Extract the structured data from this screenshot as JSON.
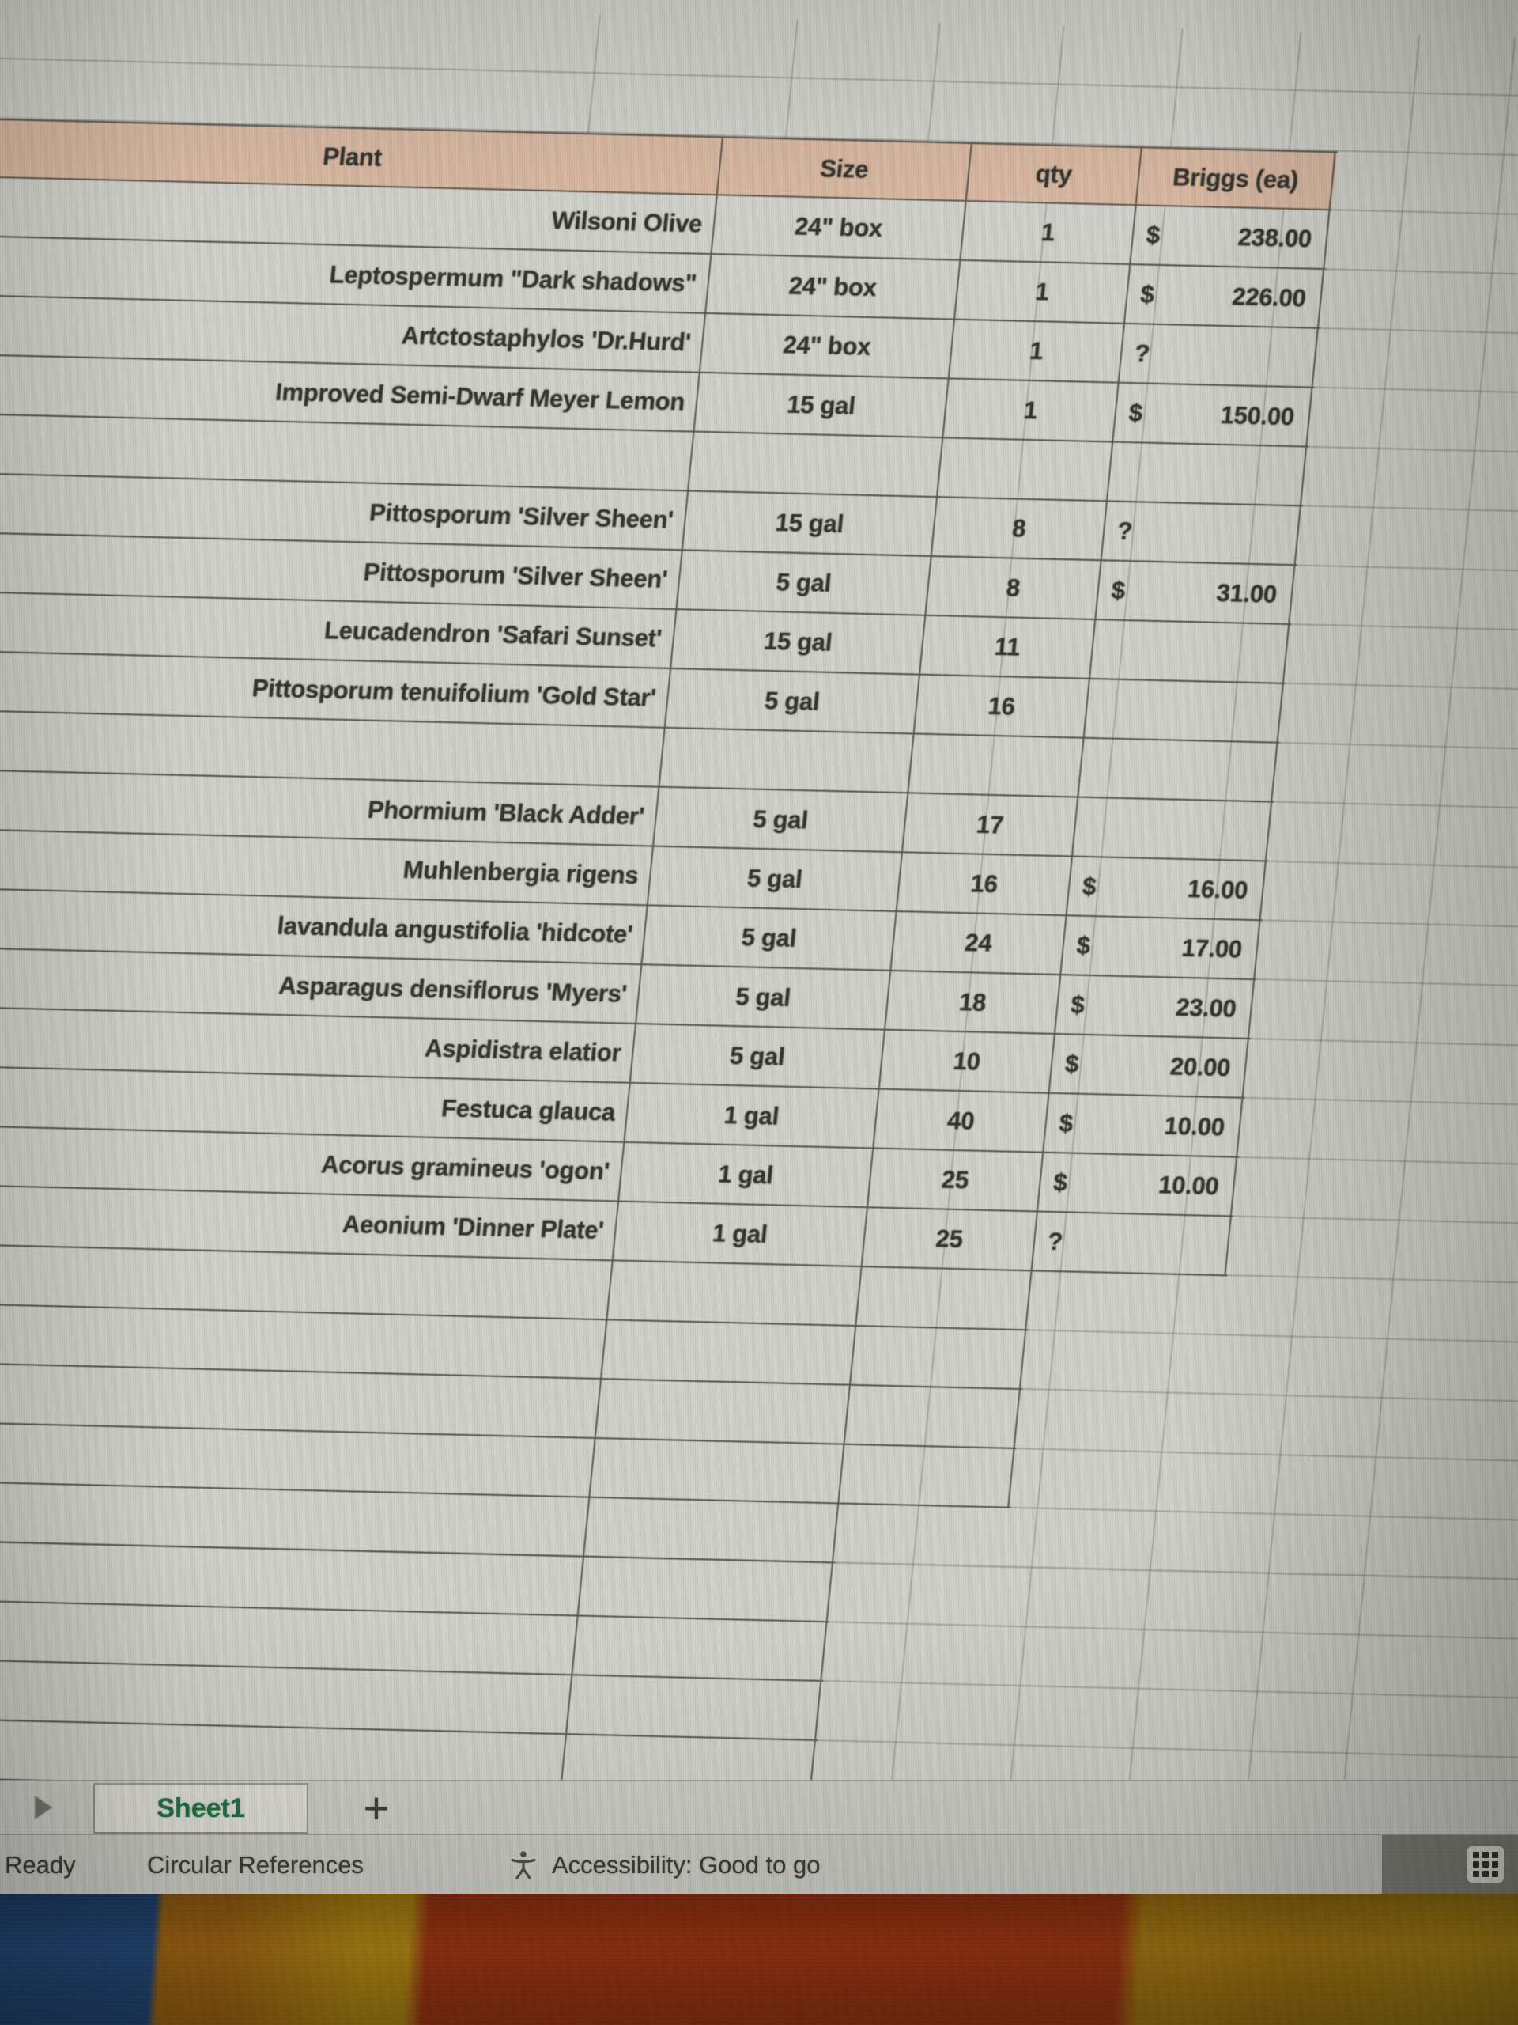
{
  "table": {
    "columns": [
      {
        "key": "plant",
        "label": "Plant"
      },
      {
        "key": "size",
        "label": "Size"
      },
      {
        "key": "qty",
        "label": "qty"
      },
      {
        "key": "price",
        "label": "Briggs (ea)"
      }
    ],
    "rows": [
      {
        "plant": "Wilsoni Olive",
        "size": "24\" box",
        "qty": "1",
        "currency": "$",
        "price": "238.00"
      },
      {
        "plant": "Leptospermum \"Dark shadows\"",
        "size": "24\" box",
        "qty": "1",
        "currency": "$",
        "price": "226.00"
      },
      {
        "plant": "Artctostaphylos 'Dr.Hurd'",
        "size": "24\" box",
        "qty": "1",
        "currency": "?",
        "price": ""
      },
      {
        "plant": "Improved Semi-Dwarf Meyer Lemon",
        "size": "15 gal",
        "qty": "1",
        "currency": "$",
        "price": "150.00"
      },
      {
        "plant": "",
        "size": "",
        "qty": "",
        "currency": "",
        "price": ""
      },
      {
        "plant": "Pittosporum 'Silver Sheen'",
        "size": "15 gal",
        "qty": "8",
        "currency": "?",
        "price": ""
      },
      {
        "plant": "Pittosporum 'Silver Sheen'",
        "size": "5 gal",
        "qty": "8",
        "currency": "$",
        "price": "31.00"
      },
      {
        "plant": "Leucadendron 'Safari Sunset'",
        "size": "15 gal",
        "qty": "11",
        "currency": "",
        "price": ""
      },
      {
        "plant": "Pittosporum tenuifolium 'Gold Star'",
        "size": "5 gal",
        "qty": "16",
        "currency": "",
        "price": ""
      },
      {
        "plant": "",
        "size": "",
        "qty": "",
        "currency": "",
        "price": ""
      },
      {
        "plant": "Phormium 'Black Adder'",
        "size": "5 gal",
        "qty": "17",
        "currency": "",
        "price": ""
      },
      {
        "plant": "Muhlenbergia rigens",
        "size": "5 gal",
        "qty": "16",
        "currency": "$",
        "price": "16.00"
      },
      {
        "plant": "lavandula angustifolia 'hidcote'",
        "size": "5 gal",
        "qty": "24",
        "currency": "$",
        "price": "17.00"
      },
      {
        "plant": "Asparagus densiflorus 'Myers'",
        "size": "5 gal",
        "qty": "18",
        "currency": "$",
        "price": "23.00"
      },
      {
        "plant": "Aspidistra elatior",
        "size": "5 gal",
        "qty": "10",
        "currency": "$",
        "price": "20.00"
      },
      {
        "plant": "Festuca glauca",
        "size": "1 gal",
        "qty": "40",
        "currency": "$",
        "price": "10.00"
      },
      {
        "plant": "Acorus gramineus 'ogon'",
        "size": "1 gal",
        "qty": "25",
        "currency": "$",
        "price": "10.00"
      },
      {
        "plant": "Aeonium 'Dinner Plate'",
        "size": "1 gal",
        "qty": "25",
        "currency": "?",
        "price": ""
      }
    ]
  },
  "sheet_tabs": {
    "active_tab": "Sheet1",
    "add_tab_label": "+"
  },
  "status_bar": {
    "ready_label": "Ready",
    "circular_references_label": "Circular References",
    "accessibility_label": "Accessibility: Good to go"
  },
  "colors": {
    "header_fill": "#d8b8a2",
    "tab_green": "#1d6f42",
    "wallpaper_blue": "#21497e",
    "wallpaper_orange": "#a9680f",
    "wallpaper_yellow": "#b98d10",
    "wallpaper_red": "#a4350f",
    "wallpaper_amber": "#ad7c0e"
  }
}
